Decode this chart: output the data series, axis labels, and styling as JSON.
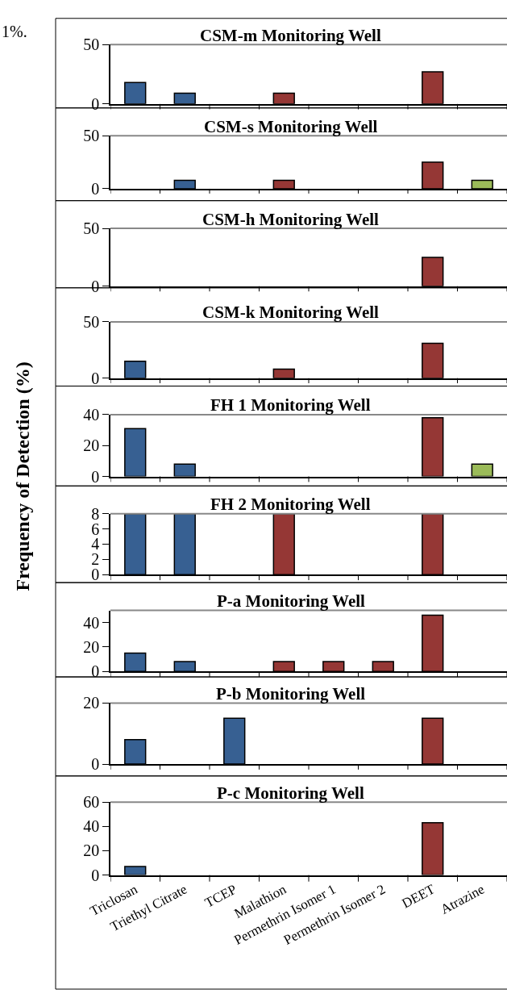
{
  "chart_data": [
    {
      "type": "bar",
      "title": "CSM-m Monitoring Well",
      "annotations": [
        "1%."
      ],
      "values": [
        18,
        9,
        null,
        9,
        null,
        null,
        27,
        null
      ],
      "colors": [
        "#376092",
        "#376092",
        "#376092",
        "#953735",
        "#953735",
        "#953735",
        "#953735",
        "#9bbb59"
      ],
      "ylim": [
        0,
        50
      ],
      "yticks": [
        0,
        50
      ],
      "tick_labels": "y"
    },
    {
      "type": "bar",
      "title": "CSM-s Monitoring Well",
      "values": [
        null,
        8,
        null,
        8,
        null,
        null,
        25,
        8
      ],
      "colors": [
        "#376092",
        "#376092",
        "#376092",
        "#953735",
        "#953735",
        "#953735",
        "#953735",
        "#9bbb59"
      ],
      "ylim": [
        0,
        50
      ],
      "yticks": [
        0,
        50
      ],
      "tick_labels": "y"
    },
    {
      "type": "bar",
      "title": "CSM-h Monitoring Well",
      "values": [
        null,
        null,
        null,
        null,
        null,
        null,
        25,
        null
      ],
      "colors": [
        "#376092",
        "#376092",
        "#376092",
        "#953735",
        "#953735",
        "#953735",
        "#953735",
        "#9bbb59"
      ],
      "ylim": [
        0,
        50
      ],
      "yticks": [
        0,
        50
      ],
      "tick_labels": "y"
    },
    {
      "type": "bar",
      "title": "CSM-k Monitoring Well",
      "values": [
        15,
        null,
        null,
        8,
        null,
        null,
        31,
        null
      ],
      "colors": [
        "#376092",
        "#376092",
        "#376092",
        "#953735",
        "#953735",
        "#953735",
        "#953735",
        "#9bbb59"
      ],
      "ylim": [
        0,
        50
      ],
      "yticks": [
        0,
        50
      ],
      "tick_labels": "y"
    },
    {
      "type": "bar",
      "title": "FH 1 Monitoring Well",
      "values": [
        31,
        8,
        null,
        null,
        null,
        null,
        38,
        8
      ],
      "colors": [
        "#376092",
        "#376092",
        "#376092",
        "#953735",
        "#953735",
        "#953735",
        "#953735",
        "#9bbb59"
      ],
      "ylim": [
        0,
        40
      ],
      "yticks": [
        0,
        20,
        40
      ],
      "tick_labels": "y"
    },
    {
      "type": "bar",
      "title": "FH 2 Monitoring Well",
      "ylabel": "Frequency of Detection (%)",
      "values": [
        8,
        8,
        null,
        8,
        null,
        null,
        8,
        null
      ],
      "colors": [
        "#376092",
        "#376092",
        "#376092",
        "#953735",
        "#953735",
        "#953735",
        "#953735",
        "#9bbb59"
      ],
      "ylim": [
        0,
        8
      ],
      "yticks": [
        0,
        2,
        4,
        6,
        8
      ],
      "tick_labels": "y"
    },
    {
      "type": "bar",
      "title": "P-a Monitoring Well",
      "values": [
        15,
        8,
        null,
        8,
        8,
        8,
        46,
        null
      ],
      "colors": [
        "#376092",
        "#376092",
        "#376092",
        "#953735",
        "#953735",
        "#953735",
        "#953735",
        "#9bbb59"
      ],
      "ylim": [
        0,
        50
      ],
      "yticks": [
        0,
        20,
        40
      ],
      "tick_labels": "y"
    },
    {
      "type": "bar",
      "title": "P-b Monitoring Well",
      "values": [
        8,
        null,
        15,
        null,
        null,
        null,
        15,
        null
      ],
      "colors": [
        "#376092",
        "#376092",
        "#376092",
        "#953735",
        "#953735",
        "#953735",
        "#953735",
        "#9bbb59"
      ],
      "ylim": [
        0,
        20
      ],
      "yticks": [
        0,
        20
      ],
      "tick_labels": "y"
    },
    {
      "type": "bar",
      "title": "P-c Monitoring Well",
      "categories": [
        "Triclosan",
        "Triethyl Citrate",
        "TCEP",
        "Malathion",
        "Permethrin Isomer 1",
        "Permethrin Isomer 2",
        "DEET",
        "Atrazine"
      ],
      "values": [
        7,
        null,
        null,
        null,
        null,
        null,
        43,
        null
      ],
      "colors": [
        "#376092",
        "#376092",
        "#376092",
        "#953735",
        "#953735",
        "#953735",
        "#953735",
        "#9bbb59"
      ],
      "ylim": [
        0,
        60
      ],
      "yticks": [
        0,
        20,
        40,
        60
      ]
    }
  ]
}
